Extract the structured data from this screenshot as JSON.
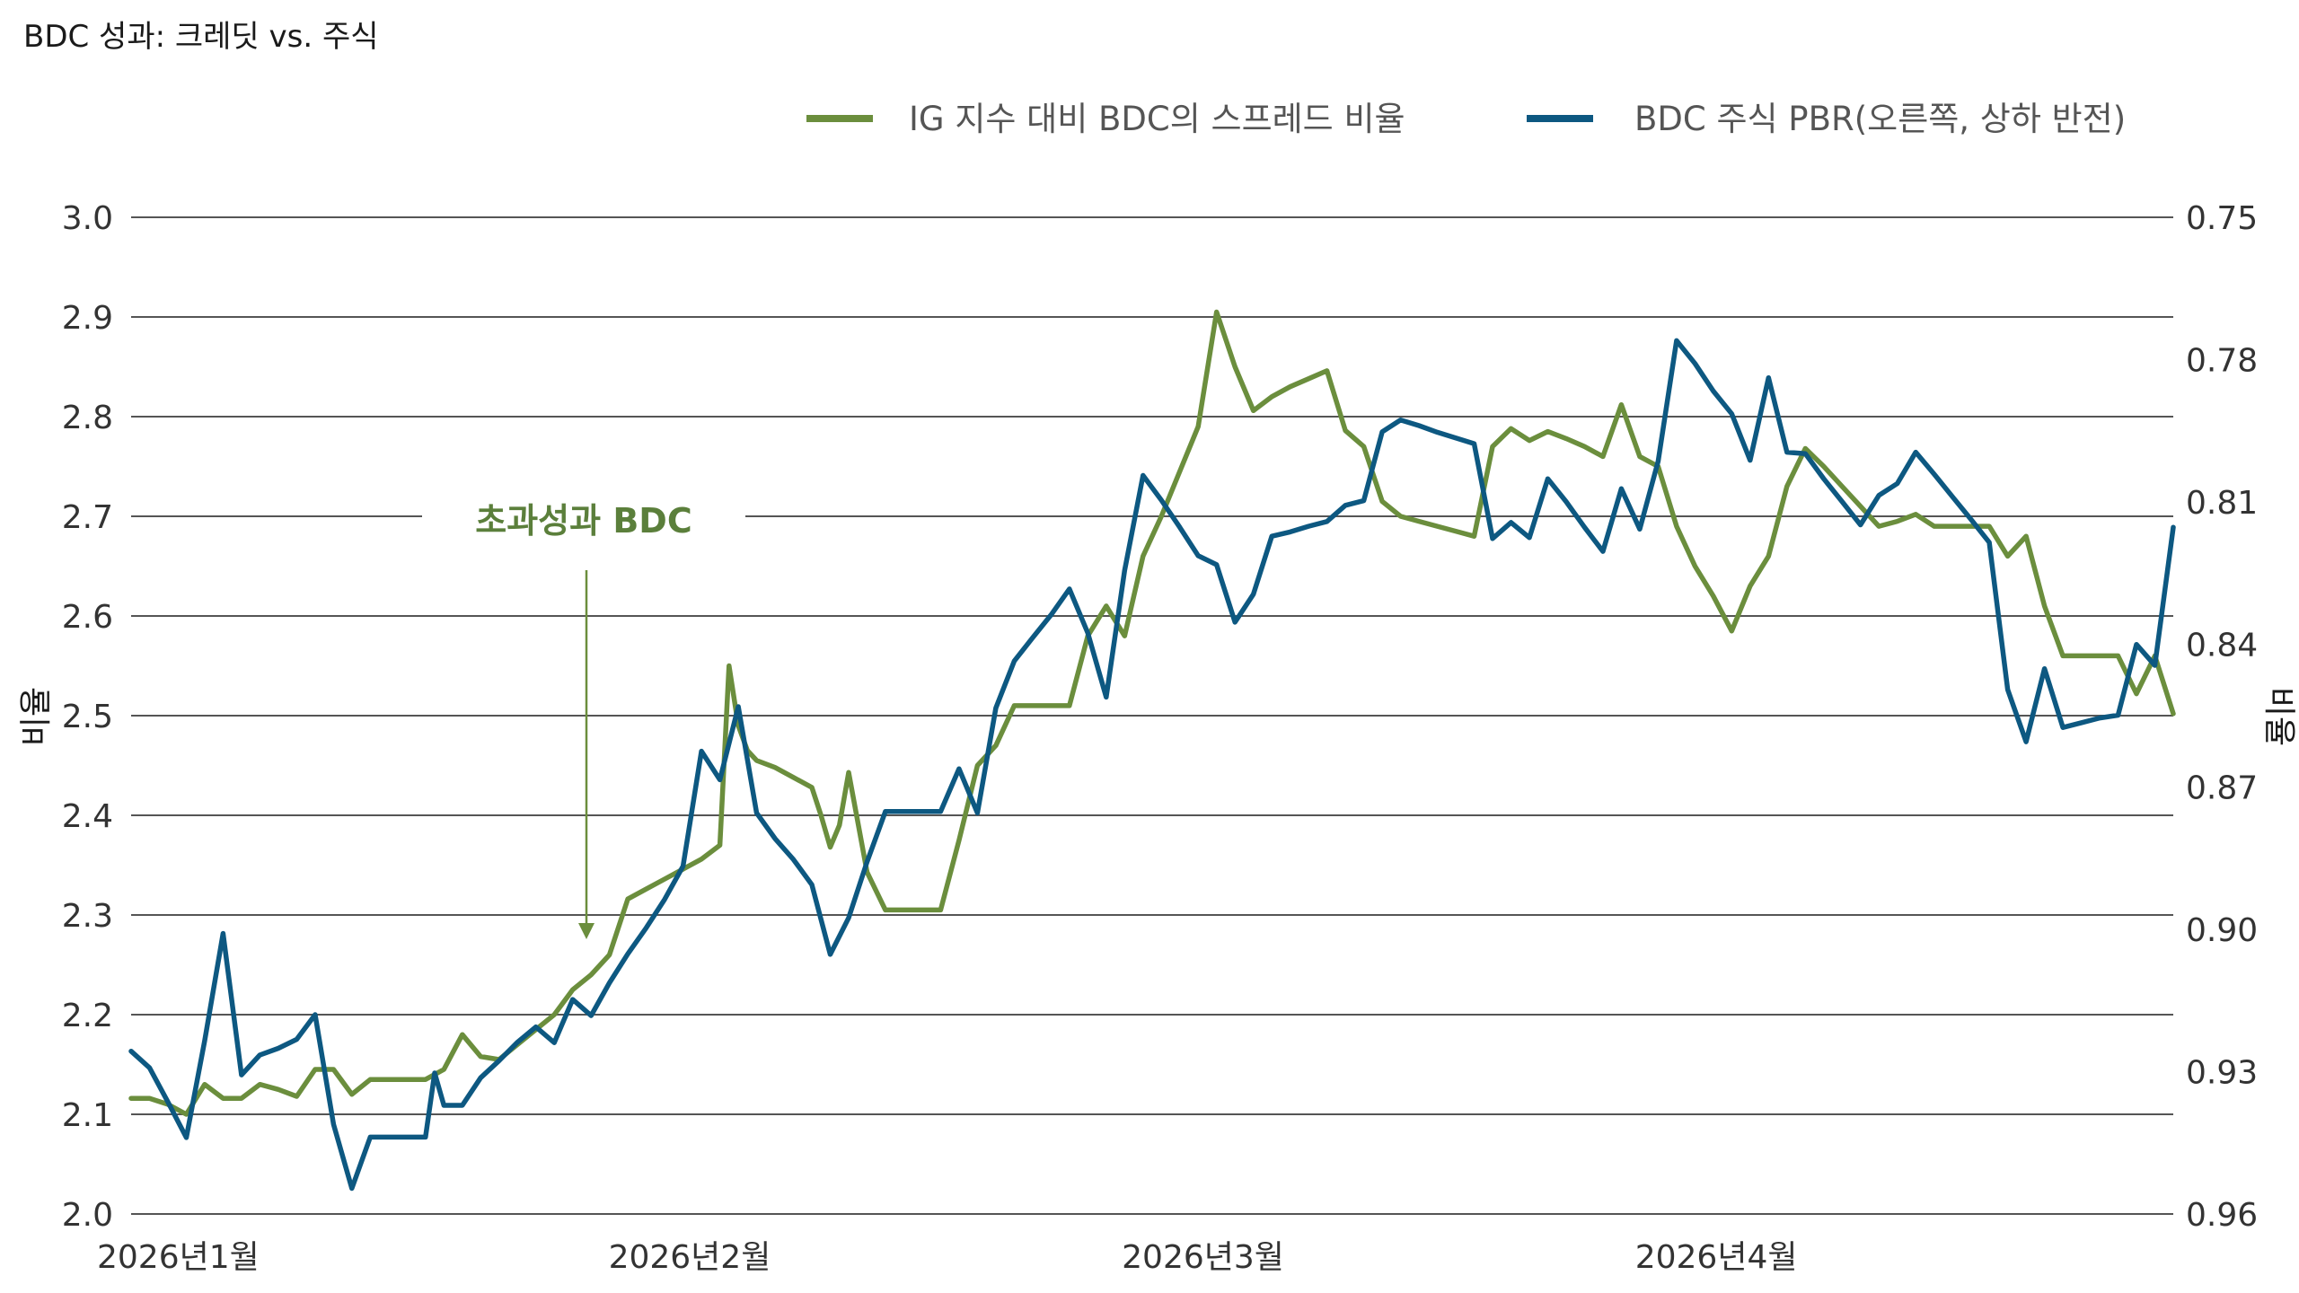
{
  "chart_data": {
    "type": "line",
    "title": "BDC 성과: 크레딧 vs. 주식",
    "ylabel_left": "비율",
    "ylabel_right": "비율",
    "ylim_left": [
      2.0,
      3.0
    ],
    "ylim_right": [
      0.75,
      0.96
    ],
    "right_axis_inverted": true,
    "yticks_left": [
      "3.0",
      "2.9",
      "2.8",
      "2.7",
      "2.6",
      "2.5",
      "2.4",
      "2.3",
      "2.2",
      "2.1",
      "2.0"
    ],
    "yticks_right": [
      "0.75",
      "0.78",
      "0.81",
      "0.84",
      "0.87",
      "0.90",
      "0.93",
      "0.96"
    ],
    "xticks": [
      "2026년1월",
      "2026년2월",
      "2026년3월",
      "2026년4월"
    ],
    "xticks_pos": [
      0,
      31,
      62,
      93
    ],
    "x_max": 120,
    "grid": true,
    "legend_position": "top-right",
    "annotation": {
      "text": "초과성과 BDC",
      "arrow": "down"
    },
    "colors": {
      "credit": "#6b8e3d",
      "equity": "#0d5881"
    },
    "series": [
      {
        "name": "IG 지수 대비 BDC의 스프레드 비율",
        "axis": "left",
        "color": "#6b8e3d",
        "points": [
          [
            0,
            2.116
          ],
          [
            2,
            2.116
          ],
          [
            4,
            2.11
          ],
          [
            6,
            2.1
          ],
          [
            8,
            2.13
          ],
          [
            10,
            2.116
          ],
          [
            12,
            2.116
          ],
          [
            14,
            2.13
          ],
          [
            16,
            2.125
          ],
          [
            18,
            2.118
          ],
          [
            20,
            2.145
          ],
          [
            22,
            2.145
          ],
          [
            24,
            2.12
          ],
          [
            26,
            2.135
          ],
          [
            28,
            2.135
          ],
          [
            30,
            2.135
          ],
          [
            32,
            2.135
          ],
          [
            34,
            2.145
          ],
          [
            36,
            2.18
          ],
          [
            38,
            2.158
          ],
          [
            40,
            2.155
          ],
          [
            42,
            2.17
          ],
          [
            44,
            2.185
          ],
          [
            46,
            2.2
          ],
          [
            48,
            2.225
          ],
          [
            50,
            2.24
          ],
          [
            52,
            2.26
          ],
          [
            54,
            2.316
          ],
          [
            56,
            2.326
          ],
          [
            58,
            2.336
          ],
          [
            60,
            2.346
          ],
          [
            62,
            2.356
          ],
          [
            64,
            2.37
          ],
          [
            65,
            2.55
          ],
          [
            66,
            2.49
          ],
          [
            67,
            2.465
          ],
          [
            68,
            2.455
          ],
          [
            70,
            2.448
          ],
          [
            72,
            2.438
          ],
          [
            74,
            2.428
          ],
          [
            75,
            2.4
          ],
          [
            76,
            2.368
          ],
          [
            77,
            2.39
          ],
          [
            78,
            2.443
          ],
          [
            80,
            2.343
          ],
          [
            82,
            2.305
          ],
          [
            84,
            2.305
          ],
          [
            86,
            2.305
          ],
          [
            88,
            2.305
          ],
          [
            90,
            2.375
          ],
          [
            92,
            2.45
          ],
          [
            94,
            2.47
          ],
          [
            96,
            2.51
          ],
          [
            98,
            2.51
          ],
          [
            100,
            2.51
          ],
          [
            102,
            2.51
          ],
          [
            104,
            2.58
          ],
          [
            106,
            2.61
          ],
          [
            108,
            2.58
          ],
          [
            110,
            2.66
          ],
          [
            112,
            2.7
          ],
          [
            114,
            2.745
          ],
          [
            116,
            2.79
          ],
          [
            118,
            2.905
          ],
          [
            120,
            2.85
          ],
          [
            122,
            2.806
          ],
          [
            124,
            2.82
          ],
          [
            126,
            2.83
          ],
          [
            128,
            2.838
          ],
          [
            130,
            2.846
          ],
          [
            132,
            2.786
          ],
          [
            134,
            2.77
          ],
          [
            136,
            2.715
          ],
          [
            138,
            2.7
          ],
          [
            140,
            2.695
          ],
          [
            142,
            2.69
          ],
          [
            144,
            2.685
          ],
          [
            146,
            2.68
          ],
          [
            148,
            2.77
          ],
          [
            150,
            2.788
          ],
          [
            152,
            2.776
          ],
          [
            154,
            2.785
          ],
          [
            156,
            2.778
          ],
          [
            158,
            2.77
          ],
          [
            160,
            2.76
          ],
          [
            162,
            2.812
          ],
          [
            164,
            2.76
          ],
          [
            166,
            2.75
          ],
          [
            168,
            2.69
          ],
          [
            170,
            2.65
          ],
          [
            172,
            2.62
          ],
          [
            174,
            2.585
          ],
          [
            176,
            2.63
          ],
          [
            178,
            2.66
          ],
          [
            180,
            2.73
          ],
          [
            182,
            2.768
          ],
          [
            184,
            2.75
          ],
          [
            186,
            2.73
          ],
          [
            188,
            2.71
          ],
          [
            190,
            2.69
          ],
          [
            192,
            2.695
          ],
          [
            194,
            2.702
          ],
          [
            196,
            2.69
          ],
          [
            198,
            2.69
          ],
          [
            200,
            2.69
          ],
          [
            202,
            2.69
          ],
          [
            204,
            2.66
          ],
          [
            206,
            2.68
          ],
          [
            208,
            2.61
          ],
          [
            210,
            2.56
          ],
          [
            212,
            2.56
          ],
          [
            214,
            2.56
          ],
          [
            216,
            2.56
          ],
          [
            218,
            2.522
          ],
          [
            220,
            2.56
          ],
          [
            222,
            2.502
          ]
        ]
      },
      {
        "name": "BDC 주식 PBR(오른쪽, 상하 반전)",
        "axis": "right",
        "color": "#0d5881",
        "points": [
          [
            0,
            0.9257
          ],
          [
            2,
            0.9292
          ],
          [
            4,
            0.9364
          ],
          [
            6,
            0.9439
          ],
          [
            8,
            0.9235
          ],
          [
            10,
            0.9009
          ],
          [
            12,
            0.9307
          ],
          [
            14,
            0.9265
          ],
          [
            16,
            0.9251
          ],
          [
            18,
            0.9232
          ],
          [
            20,
            0.918
          ],
          [
            22,
            0.9411
          ],
          [
            24,
            0.9546
          ],
          [
            26,
            0.9438
          ],
          [
            28,
            0.9438
          ],
          [
            30,
            0.9438
          ],
          [
            32,
            0.9438
          ],
          [
            33,
            0.9303
          ],
          [
            34,
            0.9371
          ],
          [
            36,
            0.9371
          ],
          [
            38,
            0.9313
          ],
          [
            40,
            0.9277
          ],
          [
            42,
            0.9238
          ],
          [
            44,
            0.9206
          ],
          [
            46,
            0.9239
          ],
          [
            48,
            0.9148
          ],
          [
            50,
            0.9182
          ],
          [
            52,
            0.9113
          ],
          [
            54,
            0.9052
          ],
          [
            56,
            0.8997
          ],
          [
            58,
            0.8937
          ],
          [
            60,
            0.8867
          ],
          [
            62,
            0.8625
          ],
          [
            64,
            0.8685
          ],
          [
            66,
            0.8531
          ],
          [
            68,
            0.8755
          ],
          [
            70,
            0.8809
          ],
          [
            72,
            0.8853
          ],
          [
            74,
            0.8906
          ],
          [
            76,
            0.9053
          ],
          [
            78,
            0.8976
          ],
          [
            80,
            0.8858
          ],
          [
            82,
            0.8752
          ],
          [
            84,
            0.8752
          ],
          [
            86,
            0.8752
          ],
          [
            88,
            0.8752
          ],
          [
            90,
            0.8662
          ],
          [
            92,
            0.8755
          ],
          [
            94,
            0.8534
          ],
          [
            96,
            0.8435
          ],
          [
            98,
            0.8386
          ],
          [
            100,
            0.8338
          ],
          [
            102,
            0.8283
          ],
          [
            104,
            0.8376
          ],
          [
            106,
            0.8511
          ],
          [
            108,
            0.8244
          ],
          [
            110,
            0.8044
          ],
          [
            112,
            0.8096
          ],
          [
            114,
            0.8153
          ],
          [
            116,
            0.8213
          ],
          [
            118,
            0.8232
          ],
          [
            120,
            0.8353
          ],
          [
            122,
            0.8294
          ],
          [
            124,
            0.8172
          ],
          [
            126,
            0.8163
          ],
          [
            128,
            0.8151
          ],
          [
            130,
            0.8141
          ],
          [
            132,
            0.8107
          ],
          [
            134,
            0.8097
          ],
          [
            136,
            0.7952
          ],
          [
            138,
            0.7927
          ],
          [
            140,
            0.7939
          ],
          [
            142,
            0.7953
          ],
          [
            144,
            0.7965
          ],
          [
            146,
            0.7977
          ],
          [
            148,
            0.8177
          ],
          [
            150,
            0.8143
          ],
          [
            152,
            0.8175
          ],
          [
            154,
            0.8051
          ],
          [
            156,
            0.8099
          ],
          [
            158,
            0.8153
          ],
          [
            160,
            0.8204
          ],
          [
            162,
            0.8072
          ],
          [
            164,
            0.8157
          ],
          [
            166,
            0.8014
          ],
          [
            168,
            0.776
          ],
          [
            170,
            0.7808
          ],
          [
            172,
            0.7866
          ],
          [
            174,
            0.7914
          ],
          [
            176,
            0.8012
          ],
          [
            178,
            0.7838
          ],
          [
            180,
            0.7995
          ],
          [
            182,
            0.7998
          ],
          [
            184,
            0.8051
          ],
          [
            186,
            0.8099
          ],
          [
            188,
            0.8148
          ],
          [
            190,
            0.8086
          ],
          [
            192,
            0.8061
          ],
          [
            194,
            0.7995
          ],
          [
            196,
            0.8041
          ],
          [
            198,
            0.8089
          ],
          [
            200,
            0.8136
          ],
          [
            202,
            0.8185
          ],
          [
            204,
            0.8495
          ],
          [
            206,
            0.8605
          ],
          [
            208,
            0.8451
          ],
          [
            210,
            0.8575
          ],
          [
            212,
            0.8565
          ],
          [
            214,
            0.8555
          ],
          [
            216,
            0.8549
          ],
          [
            218,
            0.84
          ],
          [
            220,
            0.8444
          ],
          [
            222,
            0.8153
          ]
        ]
      }
    ]
  }
}
